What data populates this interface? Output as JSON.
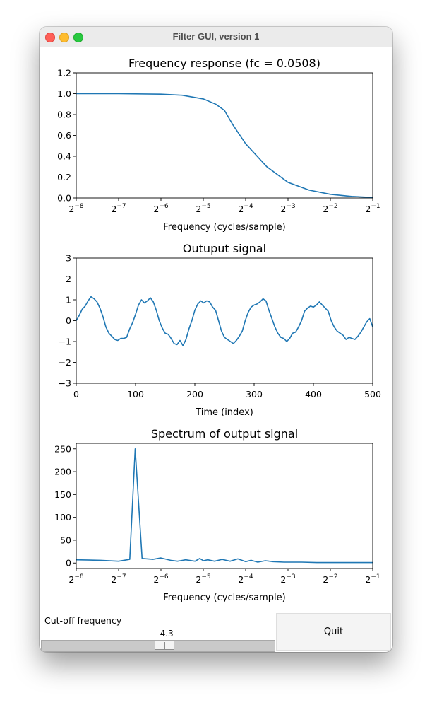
{
  "window": {
    "title": "Filter GUI, version 1"
  },
  "controls": {
    "cutoff_label": "Cut-off frequency",
    "slider_value_text": "-4.3",
    "slider_min": -8,
    "slider_max": -1,
    "slider_value": -4.3,
    "quit_label": "Quit"
  },
  "chart_data": [
    {
      "type": "line",
      "title": "Frequency response (fc = 0.0508)",
      "xlabel": "Frequency (cycles/sample)",
      "ylabel": "",
      "xscale": "log2",
      "xlim": [
        0.00390625,
        0.5
      ],
      "ylim": [
        0,
        1.2
      ],
      "x_ticks": [
        "2^-8",
        "2^-7",
        "2^-6",
        "2^-5",
        "2^-4",
        "2^-3",
        "2^-2",
        "2^-1"
      ],
      "y_ticks": [
        "0.0",
        "0.2",
        "0.4",
        "0.6",
        "0.8",
        "1.0",
        "1.2"
      ],
      "series": [
        {
          "color": "#1f77b4",
          "x": [
            0.00390625,
            0.0078125,
            0.015625,
            0.0221,
            0.03125,
            0.0383,
            0.0442,
            0.0508,
            0.0625,
            0.0884,
            0.125,
            0.1768,
            0.25,
            0.3536,
            0.5
          ],
          "values": [
            1.0,
            1.0,
            0.995,
            0.985,
            0.95,
            0.9,
            0.84,
            0.7,
            0.52,
            0.3,
            0.15,
            0.075,
            0.035,
            0.015,
            0.005
          ]
        }
      ]
    },
    {
      "type": "line",
      "title": "Outuput signal",
      "xlabel": "Time (index)",
      "ylabel": "",
      "xlim": [
        0,
        500
      ],
      "ylim": [
        -3,
        3
      ],
      "x_ticks": [
        "0",
        "100",
        "200",
        "300",
        "400",
        "500"
      ],
      "y_ticks": [
        "-3",
        "-2",
        "-1",
        "0",
        "1",
        "2",
        "3"
      ],
      "series": [
        {
          "color": "#1f77b4",
          "x": [
            0,
            5,
            10,
            15,
            20,
            25,
            30,
            35,
            40,
            45,
            50,
            55,
            60,
            65,
            70,
            75,
            80,
            85,
            90,
            95,
            100,
            105,
            110,
            115,
            120,
            125,
            130,
            135,
            140,
            145,
            150,
            155,
            160,
            165,
            170,
            175,
            180,
            185,
            190,
            195,
            200,
            205,
            210,
            215,
            220,
            225,
            230,
            235,
            240,
            245,
            250,
            255,
            260,
            265,
            270,
            275,
            280,
            285,
            290,
            295,
            300,
            305,
            310,
            315,
            320,
            325,
            330,
            335,
            340,
            345,
            350,
            355,
            360,
            365,
            370,
            375,
            380,
            385,
            390,
            395,
            400,
            405,
            410,
            415,
            420,
            425,
            430,
            435,
            440,
            445,
            450,
            455,
            460,
            465,
            470,
            475,
            480,
            485,
            490,
            495,
            500
          ],
          "values": [
            0.0,
            0.25,
            0.55,
            0.7,
            0.95,
            1.15,
            1.05,
            0.9,
            0.6,
            0.2,
            -0.3,
            -0.6,
            -0.75,
            -0.9,
            -0.95,
            -0.85,
            -0.85,
            -0.8,
            -0.4,
            -0.1,
            0.3,
            0.75,
            1.0,
            0.85,
            0.95,
            1.1,
            0.9,
            0.5,
            0.0,
            -0.35,
            -0.6,
            -0.65,
            -0.85,
            -1.1,
            -1.15,
            -0.95,
            -1.2,
            -0.9,
            -0.4,
            0.0,
            0.5,
            0.8,
            0.95,
            0.85,
            0.95,
            0.9,
            0.65,
            0.5,
            0.0,
            -0.5,
            -0.8,
            -0.9,
            -1.0,
            -1.1,
            -0.95,
            -0.75,
            -0.5,
            0.0,
            0.4,
            0.65,
            0.75,
            0.8,
            0.9,
            1.05,
            0.95,
            0.5,
            0.1,
            -0.3,
            -0.6,
            -0.8,
            -0.85,
            -1.0,
            -0.85,
            -0.6,
            -0.55,
            -0.3,
            0.0,
            0.45,
            0.6,
            0.7,
            0.65,
            0.75,
            0.9,
            0.75,
            0.6,
            0.45,
            0.0,
            -0.3,
            -0.5,
            -0.6,
            -0.7,
            -0.9,
            -0.8,
            -0.85,
            -0.9,
            -0.75,
            -0.55,
            -0.3,
            -0.05,
            0.1,
            -0.3
          ]
        }
      ]
    },
    {
      "type": "line",
      "title": "Spectrum of output signal",
      "xlabel": "Frequency (cycles/sample)",
      "ylabel": "",
      "xscale": "log2",
      "xlim": [
        0.00390625,
        0.5
      ],
      "ylim": [
        -12,
        262
      ],
      "x_ticks": [
        "2^-8",
        "2^-7",
        "2^-6",
        "2^-5",
        "2^-4",
        "2^-3",
        "2^-2",
        "2^-1"
      ],
      "y_ticks": [
        "0",
        "50",
        "100",
        "150",
        "200",
        "250"
      ],
      "series": [
        {
          "color": "#1f77b4",
          "x": [
            0.00390625,
            0.00581,
            0.00781,
            0.00938,
            0.01025,
            0.01148,
            0.0137,
            0.0156,
            0.0183,
            0.0205,
            0.0234,
            0.0273,
            0.0295,
            0.0313,
            0.0336,
            0.0376,
            0.0425,
            0.0485,
            0.055,
            0.0625,
            0.0683,
            0.0762,
            0.0862,
            0.0977,
            0.117,
            0.156,
            0.2,
            0.25,
            0.35,
            0.5
          ],
          "values": [
            7,
            6,
            4,
            8,
            250,
            10,
            8,
            11,
            6,
            4,
            7,
            4,
            10,
            5,
            7,
            4,
            8,
            4,
            9,
            3,
            6,
            2,
            5,
            3,
            2,
            2,
            1,
            1,
            1,
            1
          ]
        }
      ]
    }
  ]
}
